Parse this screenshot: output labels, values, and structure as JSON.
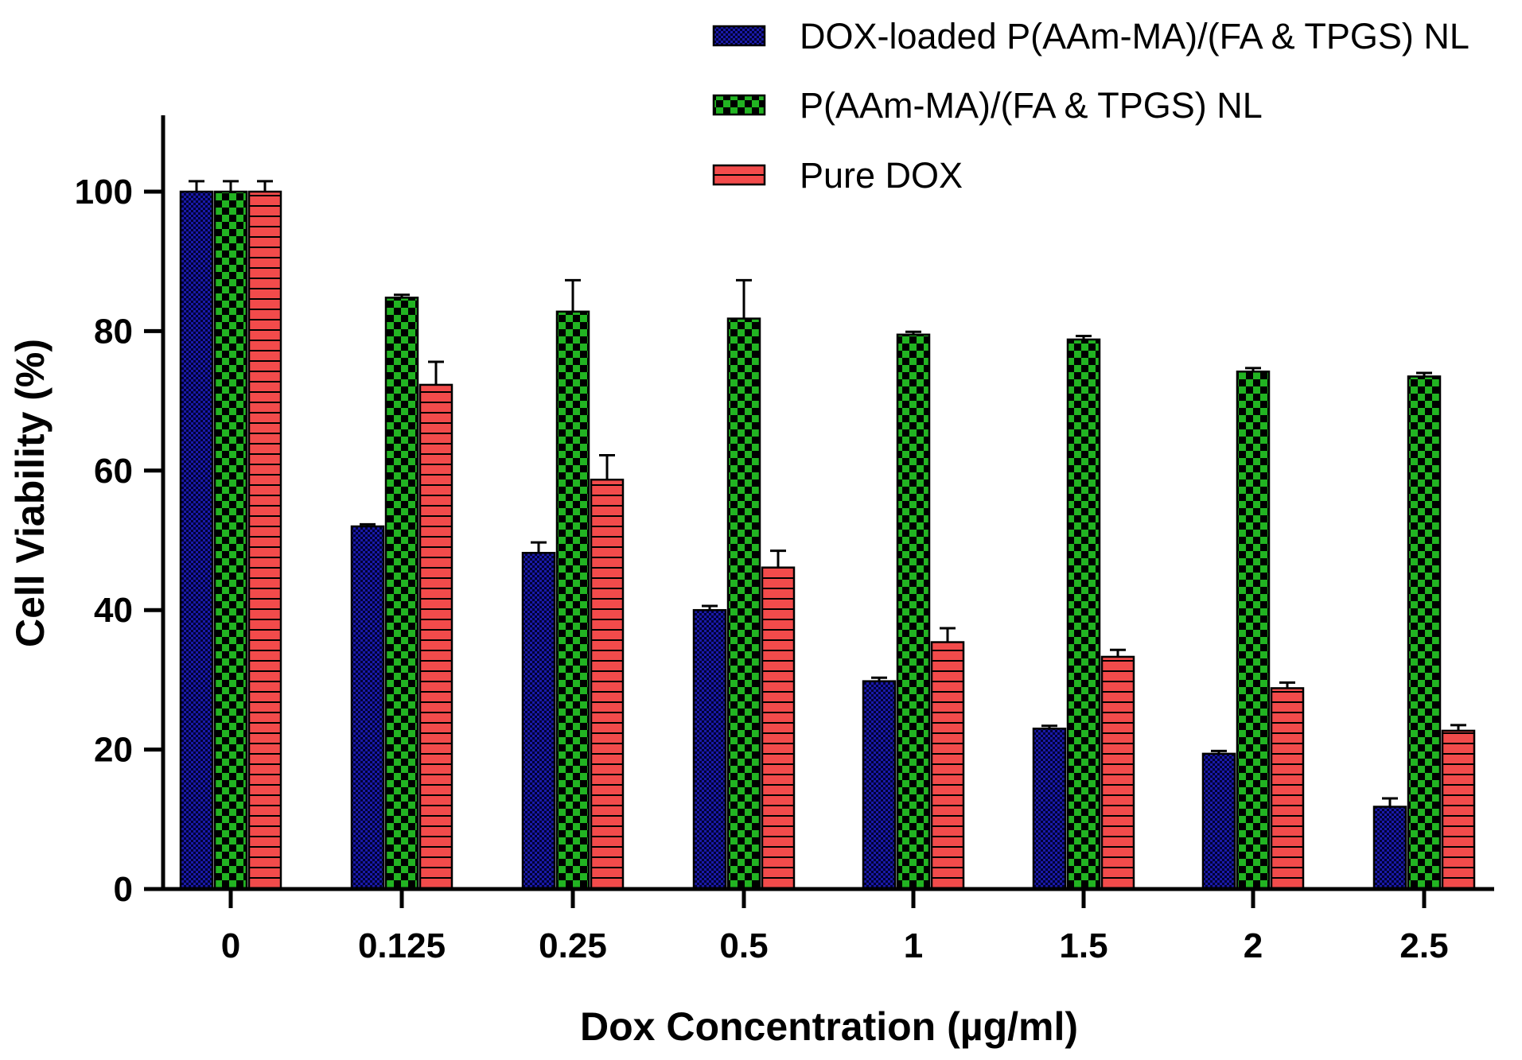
{
  "chart_data": {
    "type": "bar",
    "xlabel": "Dox Concentration (µg/ml)",
    "ylabel": "Cell Viability (%)",
    "categories": [
      "0",
      "0.125",
      "0.25",
      "0.5",
      "1",
      "1.5",
      "2",
      "2.5"
    ],
    "yticks": [
      "0",
      "20",
      "40",
      "60",
      "80",
      "100"
    ],
    "ylim": [
      0,
      110
    ],
    "grid": false,
    "legend_position": "top-right",
    "error_bars": true,
    "series": [
      {
        "name": "DOX-loaded P(AAm-MA)/(FA & TPGS) NL",
        "color": "#1a1aa8",
        "pattern": "fine-checker",
        "values": [
          100,
          52,
          48.2,
          40,
          29.8,
          23,
          19.4,
          11.8
        ],
        "errors": [
          1.5,
          0.3,
          1.5,
          0.6,
          0.5,
          0.4,
          0.4,
          1.2
        ]
      },
      {
        "name": "P(AAm-MA)/(FA & TPGS) NL",
        "color": "#22b422",
        "pattern": "coarse-checker",
        "values": [
          100,
          84.8,
          82.8,
          81.8,
          79.5,
          78.8,
          74.2,
          73.5
        ],
        "errors": [
          1.5,
          0.4,
          4.5,
          5.5,
          0.4,
          0.5,
          0.5,
          0.5
        ]
      },
      {
        "name": "Pure DOX",
        "color": "#f24b4b",
        "pattern": "horizontal-lines",
        "values": [
          100,
          72.3,
          58.7,
          46.1,
          35.4,
          33.3,
          28.8,
          22.7
        ],
        "errors": [
          1.5,
          3.3,
          3.5,
          2.4,
          2.0,
          1.0,
          0.8,
          0.8
        ]
      }
    ]
  }
}
